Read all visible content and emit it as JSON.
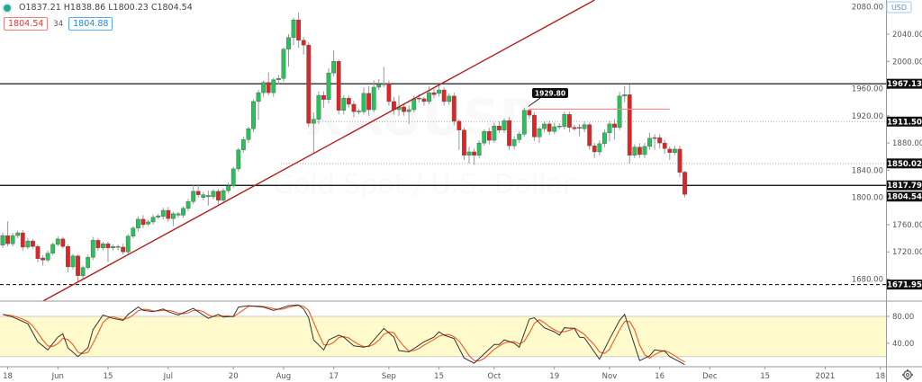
{
  "legend": {
    "ohlc": "O1837.21 H1838.86 L1800.23 C1804.54",
    "bid": "1804.54",
    "spread": "34",
    "ask": "1804.88",
    "status_color": "#26a69a"
  },
  "watermark": {
    "symbol": "XAUUSD",
    "description": "Gold Spot / U.S. Dollar"
  },
  "currency_label": "USD",
  "settings_icon": "gear-icon",
  "colors": {
    "up": "#26c25a",
    "down": "#e02424",
    "trendline": "#b71c1c",
    "band": "#fffbcc",
    "k_line": "#333333",
    "d_line": "#ff5722"
  },
  "chart_data": {
    "type": "candlestick",
    "price_axis": {
      "min": 1660,
      "max": 2090,
      "ticks": [
        "2080.00",
        "2040.00",
        "2000.00",
        "1960.00",
        "1920.00",
        "1880.00",
        "1840.00",
        "1800.00",
        "1760.00",
        "1720.00",
        "1680.00"
      ]
    },
    "time_axis": [
      {
        "label": "18",
        "bar": 2
      },
      {
        "label": "Jun",
        "bar": 12
      },
      {
        "label": "15",
        "bar": 22
      },
      {
        "label": "Jul",
        "bar": 34
      },
      {
        "label": "20",
        "bar": 47
      },
      {
        "label": "Aug",
        "bar": 57
      },
      {
        "label": "17",
        "bar": 67
      },
      {
        "label": "Sep",
        "bar": 78
      },
      {
        "label": "15",
        "bar": 88
      },
      {
        "label": "Oct",
        "bar": 99
      },
      {
        "label": "19",
        "bar": 111
      },
      {
        "label": "Nov",
        "bar": 122
      },
      {
        "label": "16",
        "bar": 132
      },
      {
        "label": "Dec",
        "bar": 142
      },
      {
        "label": "15",
        "bar": 153
      },
      {
        "label": "2021",
        "bar": 165
      },
      {
        "label": "18",
        "bar": 176
      }
    ],
    "candles_ohlc": [
      [
        1730,
        1748,
        1726,
        1744
      ],
      [
        1744,
        1765,
        1728,
        1732
      ],
      [
        1732,
        1748,
        1728,
        1744
      ],
      [
        1744,
        1751,
        1740,
        1748
      ],
      [
        1748,
        1752,
        1722,
        1727
      ],
      [
        1727,
        1740,
        1724,
        1736
      ],
      [
        1736,
        1739,
        1725,
        1728
      ],
      [
        1728,
        1731,
        1705,
        1710
      ],
      [
        1711,
        1715,
        1700,
        1708
      ],
      [
        1708,
        1722,
        1705,
        1718
      ],
      [
        1718,
        1734,
        1715,
        1731
      ],
      [
        1731,
        1743,
        1728,
        1739
      ],
      [
        1739,
        1742,
        1725,
        1728
      ],
      [
        1728,
        1731,
        1690,
        1698
      ],
      [
        1698,
        1717,
        1694,
        1714
      ],
      [
        1714,
        1716,
        1676,
        1685
      ],
      [
        1685,
        1700,
        1680,
        1697
      ],
      [
        1697,
        1716,
        1694,
        1712
      ],
      [
        1712,
        1742,
        1708,
        1737
      ],
      [
        1737,
        1740,
        1722,
        1726
      ],
      [
        1726,
        1735,
        1722,
        1732
      ],
      [
        1732,
        1735,
        1705,
        1726
      ],
      [
        1726,
        1731,
        1722,
        1728
      ],
      [
        1727,
        1731,
        1722,
        1728
      ],
      [
        1727,
        1732,
        1716,
        1720
      ],
      [
        1720,
        1746,
        1716,
        1743
      ],
      [
        1743,
        1758,
        1740,
        1755
      ],
      [
        1755,
        1772,
        1750,
        1768
      ],
      [
        1768,
        1774,
        1755,
        1760
      ],
      [
        1761,
        1767,
        1758,
        1764
      ],
      [
        1764,
        1775,
        1760,
        1771
      ],
      [
        1771,
        1776,
        1768,
        1773
      ],
      [
        1772,
        1785,
        1768,
        1781
      ],
      [
        1781,
        1786,
        1764,
        1769
      ],
      [
        1769,
        1779,
        1758,
        1776
      ],
      [
        1774,
        1779,
        1770,
        1776
      ],
      [
        1774,
        1787,
        1770,
        1784
      ],
      [
        1784,
        1798,
        1780,
        1794
      ],
      [
        1794,
        1818,
        1790,
        1809
      ],
      [
        1809,
        1818,
        1800,
        1804
      ],
      [
        1800,
        1808,
        1796,
        1804
      ],
      [
        1801,
        1810,
        1788,
        1803
      ],
      [
        1801,
        1812,
        1797,
        1809
      ],
      [
        1809,
        1812,
        1790,
        1796
      ],
      [
        1796,
        1813,
        1792,
        1810
      ],
      [
        1810,
        1822,
        1806,
        1817
      ],
      [
        1817,
        1845,
        1814,
        1842
      ],
      [
        1842,
        1873,
        1838,
        1870
      ],
      [
        1870,
        1889,
        1866,
        1885
      ],
      [
        1885,
        1904,
        1880,
        1901
      ],
      [
        1901,
        1944,
        1896,
        1941
      ],
      [
        1941,
        1958,
        1914,
        1954
      ],
      [
        1954,
        1972,
        1948,
        1969
      ],
      [
        1969,
        1984,
        1950,
        1954
      ],
      [
        1954,
        1976,
        1948,
        1973
      ],
      [
        1973,
        1980,
        1966,
        1975
      ],
      [
        1975,
        2020,
        1970,
        2018
      ],
      [
        2018,
        2040,
        1992,
        2035
      ],
      [
        2035,
        2064,
        2024,
        2061
      ],
      [
        2061,
        2072,
        2020,
        2031
      ],
      [
        2031,
        2036,
        2010,
        2024
      ],
      [
        2024,
        2028,
        1904,
        1909
      ],
      [
        1909,
        1925,
        1866,
        1915
      ],
      [
        1915,
        1956,
        1908,
        1950
      ],
      [
        1950,
        1956,
        1932,
        1944
      ],
      [
        1944,
        1990,
        1938,
        1983
      ],
      [
        1983,
        2016,
        1978,
        2000
      ],
      [
        2000,
        2003,
        1922,
        1928
      ],
      [
        1928,
        1950,
        1922,
        1946
      ],
      [
        1946,
        1950,
        1932,
        1937
      ],
      [
        1937,
        1942,
        1918,
        1926
      ],
      [
        1926,
        1930,
        1922,
        1927
      ],
      [
        1926,
        1962,
        1922,
        1953
      ],
      [
        1953,
        1964,
        1920,
        1929
      ],
      [
        1929,
        1972,
        1925,
        1962
      ],
      [
        1962,
        1974,
        1958,
        1966
      ],
      [
        1966,
        1992,
        1962,
        1967
      ],
      [
        1967,
        1972,
        1935,
        1941
      ],
      [
        1941,
        1948,
        1922,
        1929
      ],
      [
        1929,
        1950,
        1920,
        1933
      ],
      [
        1933,
        1938,
        1920,
        1926
      ],
      [
        1926,
        1935,
        1908,
        1929
      ],
      [
        1929,
        1950,
        1925,
        1945
      ],
      [
        1946,
        1952,
        1940,
        1945
      ],
      [
        1945,
        1948,
        1935,
        1941
      ],
      [
        1941,
        1963,
        1937,
        1954
      ],
      [
        1954,
        1960,
        1946,
        1951
      ],
      [
        1953,
        1966,
        1948,
        1958
      ],
      [
        1958,
        1962,
        1935,
        1941
      ],
      [
        1941,
        1953,
        1936,
        1949
      ],
      [
        1949,
        1954,
        1906,
        1912
      ],
      [
        1912,
        1915,
        1870,
        1899
      ],
      [
        1899,
        1903,
        1855,
        1862
      ],
      [
        1862,
        1874,
        1850,
        1867
      ],
      [
        1867,
        1872,
        1848,
        1862
      ],
      [
        1862,
        1884,
        1858,
        1880
      ],
      [
        1880,
        1900,
        1876,
        1897
      ],
      [
        1897,
        1902,
        1878,
        1884
      ],
      [
        1884,
        1910,
        1880,
        1905
      ],
      [
        1905,
        1912,
        1895,
        1899
      ],
      [
        1899,
        1916,
        1895,
        1913
      ],
      [
        1913,
        1918,
        1870,
        1876
      ],
      [
        1876,
        1890,
        1871,
        1885
      ],
      [
        1885,
        1897,
        1880,
        1893
      ],
      [
        1893,
        1932,
        1889,
        1928
      ],
      [
        1928,
        1930,
        1916,
        1921
      ],
      [
        1921,
        1925,
        1883,
        1889
      ],
      [
        1889,
        1904,
        1880,
        1901
      ],
      [
        1901,
        1912,
        1896,
        1908
      ],
      [
        1908,
        1913,
        1892,
        1897
      ],
      [
        1897,
        1910,
        1893,
        1904
      ],
      [
        1904,
        1909,
        1900,
        1905
      ],
      [
        1904,
        1926,
        1900,
        1922
      ],
      [
        1922,
        1926,
        1896,
        1903
      ],
      [
        1903,
        1907,
        1898,
        1901
      ],
      [
        1903,
        1908,
        1890,
        1902
      ],
      [
        1901,
        1912,
        1896,
        1907
      ],
      [
        1907,
        1910,
        1870,
        1876
      ],
      [
        1876,
        1880,
        1858,
        1867
      ],
      [
        1867,
        1884,
        1862,
        1879
      ],
      [
        1879,
        1900,
        1874,
        1895
      ],
      [
        1895,
        1913,
        1882,
        1908
      ],
      [
        1908,
        1915,
        1885,
        1903
      ],
      [
        1903,
        1955,
        1899,
        1949
      ],
      [
        1949,
        1964,
        1940,
        1951
      ],
      [
        1951,
        1966,
        1850,
        1862
      ],
      [
        1862,
        1878,
        1858,
        1874
      ],
      [
        1874,
        1880,
        1858,
        1863
      ],
      [
        1863,
        1880,
        1858,
        1875
      ],
      [
        1875,
        1895,
        1870,
        1887
      ],
      [
        1888,
        1893,
        1870,
        1887
      ],
      [
        1888,
        1893,
        1872,
        1880
      ],
      [
        1880,
        1885,
        1864,
        1872
      ],
      [
        1871,
        1875,
        1855,
        1866
      ],
      [
        1866,
        1876,
        1862,
        1871
      ],
      [
        1871,
        1876,
        1830,
        1837
      ],
      [
        1837.21,
        1838.86,
        1800.23,
        1804.54
      ]
    ],
    "horizontal_levels": [
      {
        "price": 1967.13,
        "label": "1967.13",
        "style": "solid"
      },
      {
        "price": 1911.5,
        "label": "1911.50",
        "style": "dotted"
      },
      {
        "price": 1850.02,
        "label": "1850.02",
        "style": "dotted"
      },
      {
        "price": 1817.79,
        "label": "1817.79",
        "style": "solid"
      },
      {
        "price": 1671.95,
        "label": "1671.95",
        "style": "dashed"
      }
    ],
    "last_price_label": "1804.54",
    "resistance_marker": {
      "price": 1929.8,
      "label": "1929.80",
      "from_bar": 106,
      "to_bar": 134
    },
    "trendline": [
      [
        9.1,
        1648
      ],
      [
        119,
        2090
      ]
    ],
    "oscillator": {
      "range": [
        0,
        100
      ],
      "band": [
        20,
        80
      ],
      "ticks": [
        "80.00",
        "40.00"
      ],
      "k": [
        [
          1,
          83
        ],
        [
          3,
          79
        ],
        [
          6,
          69
        ],
        [
          8,
          42
        ],
        [
          10,
          30
        ],
        [
          12,
          49
        ],
        [
          13,
          54
        ],
        [
          14,
          33
        ],
        [
          16,
          20
        ],
        [
          18,
          33
        ],
        [
          19,
          60
        ],
        [
          21,
          82
        ],
        [
          23,
          77
        ],
        [
          25,
          74
        ],
        [
          26,
          83
        ],
        [
          28,
          94
        ],
        [
          29,
          89
        ],
        [
          31,
          87
        ],
        [
          33,
          91
        ],
        [
          34,
          87
        ],
        [
          36,
          82
        ],
        [
          39,
          92
        ],
        [
          40,
          87
        ],
        [
          42,
          77
        ],
        [
          44,
          83
        ],
        [
          45,
          79
        ],
        [
          47,
          80
        ],
        [
          48,
          94
        ],
        [
          50,
          96
        ],
        [
          53,
          94
        ],
        [
          55,
          89
        ],
        [
          56,
          91
        ],
        [
          58,
          96
        ],
        [
          60,
          97
        ],
        [
          61,
          91
        ],
        [
          62,
          78
        ],
        [
          63,
          45
        ],
        [
          65,
          30
        ],
        [
          66,
          45
        ],
        [
          68,
          52
        ],
        [
          69,
          49
        ],
        [
          71,
          36
        ],
        [
          73,
          34
        ],
        [
          74,
          36
        ],
        [
          77,
          62
        ],
        [
          79,
          49
        ],
        [
          80,
          29
        ],
        [
          82,
          27
        ],
        [
          85,
          42
        ],
        [
          87,
          49
        ],
        [
          88,
          57
        ],
        [
          89,
          52
        ],
        [
          91,
          47
        ],
        [
          93,
          18
        ],
        [
          95,
          10
        ],
        [
          97,
          24
        ],
        [
          99,
          38
        ],
        [
          100,
          38
        ],
        [
          101,
          45
        ],
        [
          103,
          40
        ],
        [
          104,
          34
        ],
        [
          106,
          76
        ],
        [
          107,
          78
        ],
        [
          109,
          63
        ],
        [
          111,
          57
        ],
        [
          112,
          52
        ],
        [
          113,
          63
        ],
        [
          115,
          62
        ],
        [
          116,
          49
        ],
        [
          117,
          48
        ],
        [
          120,
          16
        ],
        [
          122,
          46
        ],
        [
          124,
          74
        ],
        [
          125,
          83
        ],
        [
          128,
          14
        ],
        [
          130,
          21
        ],
        [
          131,
          30
        ],
        [
          133,
          28
        ],
        [
          134,
          20
        ],
        [
          137,
          8
        ]
      ]
    }
  }
}
